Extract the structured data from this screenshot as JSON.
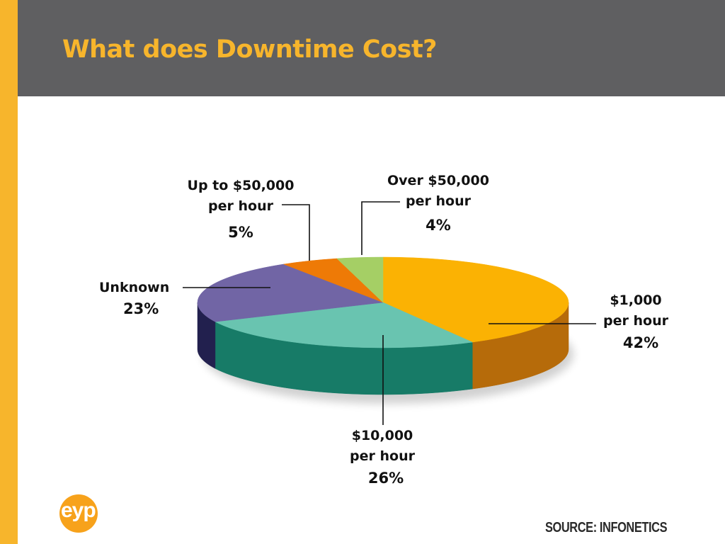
{
  "slide": {
    "title": "What does Downtime Cost?",
    "source": "SOURCE: INFONETICS",
    "logo_text": "eyp",
    "colors": {
      "accent": "#f7b52c",
      "header_bg": "#5f5f61"
    }
  },
  "chart_data": {
    "type": "pie",
    "style": "3d",
    "title": "What does Downtime Cost?",
    "slices": [
      {
        "label_line1": "$1,000",
        "label_line2": "per hour",
        "value": 42,
        "pct_label": "42%",
        "color": "#fbb203",
        "side": "#b66b0a"
      },
      {
        "label_line1": "$10,000",
        "label_line2": "per hour",
        "value": 26,
        "pct_label": "26%",
        "color": "#69c4b0",
        "side": "#177b67"
      },
      {
        "label_line1": "Unknown",
        "label_line2": "",
        "value": 23,
        "pct_label": "23%",
        "color": "#7165a5",
        "side": "#22204e"
      },
      {
        "label_line1": "Up to $50,000",
        "label_line2": "per hour",
        "value": 5,
        "pct_label": "5%",
        "color": "#ee7a06",
        "side": "#a44d04"
      },
      {
        "label_line1": "Over $50,000",
        "label_line2": "per hour",
        "value": 4,
        "pct_label": "4%",
        "color": "#a5cf65",
        "side": "#5f8a2a"
      }
    ],
    "legend": "none",
    "source": "SOURCE: INFONETICS"
  }
}
